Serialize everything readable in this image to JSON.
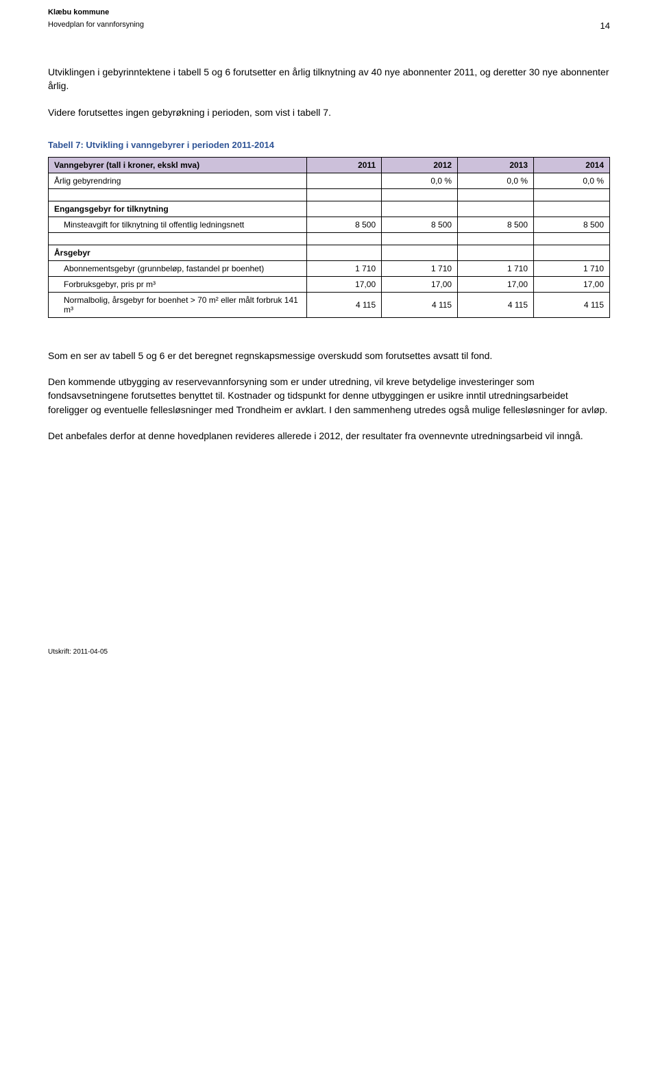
{
  "header": {
    "org": "Klæbu kommune",
    "doc_title": "Hovedplan for vannforsyning",
    "page_number": "14"
  },
  "intro_p1": "Utviklingen i gebyrinntektene i tabell 5 og 6 forutsetter en årlig tilknytning av 40 nye abonnenter 2011, og deretter 30 nye abonnenter årlig.",
  "intro_p2": "Videre forutsettes ingen gebyrøkning i perioden, som vist i tabell 7.",
  "table": {
    "caption": "Tabell 7:  Utvikling i vanngebyrer i perioden 2011-2014",
    "header_label": "Vanngebyrer (tall i kroner, ekskl mva)",
    "years": [
      "2011",
      "2012",
      "2013",
      "2014"
    ],
    "header_bg": "#ccc0da",
    "border_color": "#000000",
    "rows": [
      {
        "label": "Årlig gebyrendring",
        "values": [
          "",
          "0,0 %",
          "0,0 %",
          "0,0 %"
        ],
        "bold": false,
        "indent": false
      },
      {
        "spacer": true
      },
      {
        "label": "Engangsgebyr for tilknytning",
        "values": [
          "",
          "",
          "",
          ""
        ],
        "bold": true,
        "indent": false
      },
      {
        "label": "Minsteavgift for tilknytning til offentlig ledningsnett",
        "values": [
          "8 500",
          "8 500",
          "8 500",
          "8 500"
        ],
        "bold": false,
        "indent": true
      },
      {
        "spacer": true
      },
      {
        "label": "Årsgebyr",
        "values": [
          "",
          "",
          "",
          ""
        ],
        "bold": true,
        "indent": false
      },
      {
        "label": "Abonnementsgebyr (grunnbeløp, fastandel pr boenhet)",
        "values": [
          "1 710",
          "1 710",
          "1 710",
          "1 710"
        ],
        "bold": false,
        "indent": true
      },
      {
        "label": "Forbruksgebyr, pris pr m³",
        "values": [
          "17,00",
          "17,00",
          "17,00",
          "17,00"
        ],
        "bold": false,
        "indent": true
      },
      {
        "label": "Normalbolig, årsgebyr for boenhet > 70 m² eller målt forbruk 141 m³",
        "values": [
          "4 115",
          "4 115",
          "4 115",
          "4 115"
        ],
        "bold": false,
        "indent": true
      }
    ]
  },
  "p_after_1": "Som en ser av tabell 5 og 6 er det beregnet regnskapsmessige overskudd som forutsettes avsatt til fond.",
  "p_after_2": "Den kommende utbygging av reservevannforsyning som er under utredning, vil kreve betydelige investeringer som fondsavsetningene forutsettes benyttet til. Kostnader og tidspunkt for denne utbyggingen er usikre inntil utredningsarbeidet foreligger og eventuelle fellesløsninger med Trondheim er avklart. I den sammenheng utredes også mulige fellesløsninger for avløp.",
  "p_after_3": "Det anbefales derfor at denne hovedplanen revideres allerede i 2012, der resultater fra ovennevnte utredningsarbeid vil inngå.",
  "footer": "Utskrift: 2011-04-05",
  "colors": {
    "caption": "#2f5496",
    "text": "#000000",
    "background": "#ffffff"
  },
  "typography": {
    "body_fontsize_pt": 10.5,
    "caption_fontsize_pt": 10,
    "header_fontsize_pt": 8,
    "font_family": "Arial"
  }
}
